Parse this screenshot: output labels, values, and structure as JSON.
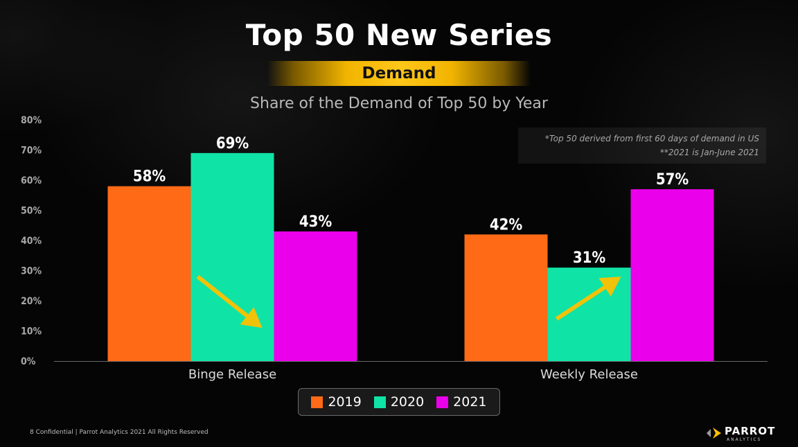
{
  "header": {
    "title": "Top 50 New Series",
    "badge": "Demand",
    "subtitle": "Share of the Demand of Top 50 by Year"
  },
  "note": {
    "line1": "*Top 50 derived from first 60 days of demand in US",
    "line2": "**2021 is Jan-June 2021"
  },
  "chart_data": {
    "type": "bar",
    "title": "Share of the Demand of Top 50 by Year",
    "categories": [
      "Binge Release",
      "Weekly Release"
    ],
    "series": [
      {
        "name": "2019",
        "values": [
          58,
          42
        ],
        "color": "#ff6a16"
      },
      {
        "name": "2020",
        "values": [
          69,
          31
        ],
        "color": "#10e3a6"
      },
      {
        "name": "2021",
        "values": [
          43,
          57
        ],
        "color": "#ea00ea"
      }
    ],
    "data_labels": [
      [
        "58%",
        "42%"
      ],
      [
        "69%",
        "31%"
      ],
      [
        "43%",
        "57%"
      ]
    ],
    "ylim": [
      0,
      80
    ],
    "yticks": [
      "0%",
      "10%",
      "20%",
      "30%",
      "40%",
      "50%",
      "60%",
      "70%",
      "80%"
    ],
    "grid": false,
    "legend_position": "bottom",
    "annotations": [
      {
        "type": "arrow",
        "direction": "down",
        "category": "Binge Release",
        "color": "#ffc000"
      },
      {
        "type": "arrow",
        "direction": "up",
        "category": "Weekly Release",
        "color": "#ffc000"
      }
    ]
  },
  "legend": {
    "items": [
      {
        "label": "2019",
        "color": "#ff6a16"
      },
      {
        "label": "2020",
        "color": "#10e3a6"
      },
      {
        "label": "2021",
        "color": "#ea00ea"
      }
    ]
  },
  "footer": {
    "text": "8  Confidential  |  Parrot Analytics 2021 All Rights Reserved"
  },
  "logo": {
    "name": "PARROT",
    "sub": "ANALYTICS"
  }
}
